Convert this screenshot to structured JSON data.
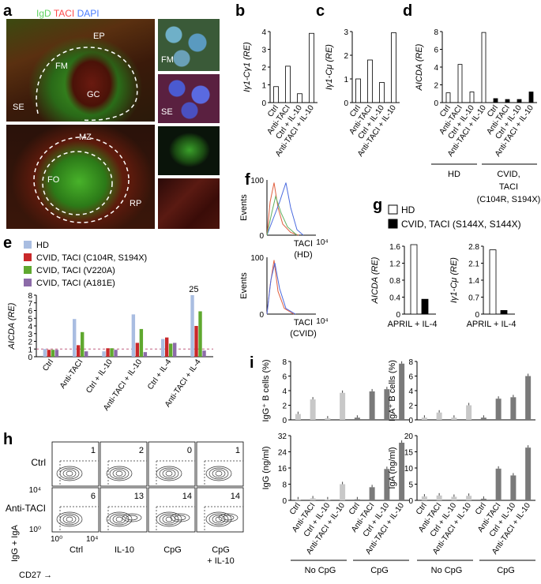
{
  "panel_labels": [
    "a",
    "b",
    "c",
    "d",
    "e",
    "f",
    "g",
    "h",
    "i"
  ],
  "panel_a": {
    "stain_legend": [
      {
        "text": "IgD",
        "color": "#5fd35f"
      },
      {
        "text": "TACI",
        "color": "#ff4a4a"
      },
      {
        "text": "DAPI",
        "color": "#4a7dff"
      }
    ],
    "top_labels": [
      "EP",
      "FM",
      "GC",
      "SE"
    ],
    "bottom_labels": [
      "MZ",
      "FO",
      "RP"
    ],
    "inset_labels": [
      "FM",
      "SE"
    ]
  },
  "chart_data": [
    {
      "id": "b",
      "type": "bar",
      "categories": [
        "Ctrl",
        "Anti-TACI",
        "Ctrl + IL-10",
        "Anti-TACI + IL-10"
      ],
      "values": [
        0.9,
        2.05,
        0.5,
        3.9
      ],
      "ylabel": "Iγ1-Cγ1 (RE)",
      "ylim": [
        0,
        4
      ],
      "yticks": [
        "0",
        "1",
        "2",
        "3",
        "4"
      ],
      "colors": [
        "#ffffff"
      ]
    },
    {
      "id": "c",
      "type": "bar",
      "categories": [
        "Ctrl",
        "Anti-TACI",
        "Ctrl + IL-10",
        "Anti-TACI + IL-10"
      ],
      "values": [
        1.0,
        1.8,
        0.85,
        2.95
      ],
      "ylabel": "Iγ1-Cμ (RE)",
      "ylim": [
        0,
        3
      ],
      "yticks": [
        "0",
        "1",
        "2",
        "3"
      ],
      "colors": [
        "#ffffff"
      ]
    },
    {
      "id": "d",
      "type": "bar",
      "categories": [
        "Ctrl",
        "Anti-TACI",
        "Ctrl + IL-10",
        "Anti-TACI + IL-10",
        "Ctrl",
        "Anti-TACI",
        "Ctrl + IL-10",
        "Anti-TACI + IL-10"
      ],
      "values": [
        1.1,
        4.3,
        1.2,
        7.9,
        0.45,
        0.35,
        0.35,
        1.2
      ],
      "groups": [
        "HD",
        "CVID, TACI (C104R, S194X)"
      ],
      "ylabel": "AICDA (RE)",
      "ylim": [
        0,
        8
      ],
      "yticks": [
        "0",
        "2",
        "4",
        "6",
        "8"
      ]
    },
    {
      "id": "e",
      "type": "bar",
      "categories": [
        "Ctrl",
        "Anti-TACI",
        "Ctrl + IL-10",
        "Anti-TACI + IL-10",
        "Ctrl + IL-4",
        "Anti-TACI + IL-4"
      ],
      "series": [
        {
          "name": "HD",
          "color": "#a9bde1",
          "values": [
            1.0,
            4.9,
            0.7,
            5.5,
            2.3,
            8.0
          ]
        },
        {
          "name": "CVID, TACI (C104R, S194X)",
          "color": "#c9282a",
          "values": [
            0.9,
            1.5,
            1.1,
            1.8,
            2.5,
            4.0
          ]
        },
        {
          "name": "CVID, TACI (V220A)",
          "color": "#5fa82f",
          "values": [
            0.9,
            3.2,
            1.1,
            3.6,
            1.7,
            5.9
          ]
        },
        {
          "name": "CVID, TACI (A181E)",
          "color": "#8c6ba8",
          "values": [
            0.9,
            0.7,
            0.9,
            0.6,
            1.8,
            0.8
          ]
        }
      ],
      "ylabel": "AICDA (RE)",
      "ylim": [
        0,
        8
      ],
      "yticks": [
        "0",
        "1",
        "2",
        "3",
        "4",
        "5",
        "6",
        "7",
        "8"
      ],
      "annotation": "25",
      "reference_line": 1
    },
    {
      "id": "f",
      "type": "line",
      "plots": [
        {
          "xlabel": "TACI (HD)"
        },
        {
          "xlabel": "TACI (CVID)"
        }
      ],
      "ylabel": "Events",
      "yticks": [
        "0",
        "100"
      ],
      "xticks": [
        "10⁰",
        "10⁴"
      ]
    },
    {
      "id": "g",
      "type": "bar",
      "legend": [
        {
          "name": "HD",
          "color": "#ffffff"
        },
        {
          "name": "CVID, TACI (S144X, S144X)",
          "color": "#000000"
        }
      ],
      "plots": [
        {
          "ylabel": "AICDA (RE)",
          "category": "APRIL + IL-4",
          "values": [
            1.62,
            0.35
          ],
          "ylim": [
            0,
            1.6
          ],
          "yticks": [
            "0",
            "0.4",
            "0.8",
            "1.2",
            "1.6"
          ]
        },
        {
          "ylabel": "Iγ1-Cμ (RE)",
          "category": "APRIL + IL-4",
          "values": [
            2.65,
            0.15
          ],
          "ylim": [
            0,
            2.8
          ],
          "yticks": [
            "0",
            "0.7",
            "1.4",
            "2.1",
            "2.8"
          ]
        }
      ]
    },
    {
      "id": "h",
      "type": "scatter",
      "rows": [
        "Ctrl",
        "Anti-TACI"
      ],
      "columns": [
        "Ctrl",
        "IL-10",
        "CpG",
        "CpG + IL-10"
      ],
      "quadrant_values": [
        [
          "1",
          "2",
          "0",
          "1"
        ],
        [
          "6",
          "13",
          "14",
          "14"
        ]
      ],
      "xlabel": "CD27 →",
      "ylabel": "IgG + IgA",
      "xticks": [
        "10⁰",
        "10⁴"
      ],
      "yticks": [
        "10⁰",
        "10⁴"
      ]
    },
    {
      "id": "i",
      "type": "bar",
      "categories": [
        "Ctrl",
        "Anti-TACI",
        "Ctrl + IL-10",
        "Anti-TACI + IL-10",
        "Ctrl",
        "Anti-TACI",
        "Ctrl + IL-10",
        "Anti-TACI + IL-10"
      ],
      "groups": [
        "No CpG",
        "CpG"
      ],
      "plots": [
        {
          "ylabel": "IgG⁺ B cells (%)",
          "values": [
            0.8,
            2.8,
            0.2,
            3.7,
            0.3,
            3.9,
            4.2,
            7.7
          ],
          "ylim": [
            0,
            8
          ],
          "yticks": [
            "0",
            "2",
            "4",
            "6",
            "8"
          ]
        },
        {
          "ylabel": "IgA⁺ B cells (%)",
          "values": [
            0.3,
            1.0,
            0.3,
            2.0,
            0.3,
            2.9,
            3.1,
            6.0
          ],
          "ylim": [
            0,
            8
          ],
          "yticks": [
            "0",
            "2",
            "4",
            "6",
            "8"
          ]
        },
        {
          "ylabel": "IgG (ng/ml)",
          "values": [
            0.5,
            1.0,
            0.5,
            8.0,
            0.5,
            6.5,
            15.5,
            28.5
          ],
          "ylim": [
            0,
            32
          ],
          "yticks": [
            "0",
            "8",
            "16",
            "24",
            "32"
          ]
        },
        {
          "ylabel": "IgA (ng/ml)",
          "values": [
            1.2,
            1.5,
            1.1,
            1.4,
            0.5,
            9.8,
            7.7,
            16.3
          ],
          "ylim": [
            0,
            20
          ],
          "yticks": [
            "0",
            "5",
            "10",
            "15",
            "20"
          ]
        }
      ],
      "colors": {
        "no_cpg": "#c8c8c8",
        "cpg": "#7a7a7a"
      }
    }
  ]
}
